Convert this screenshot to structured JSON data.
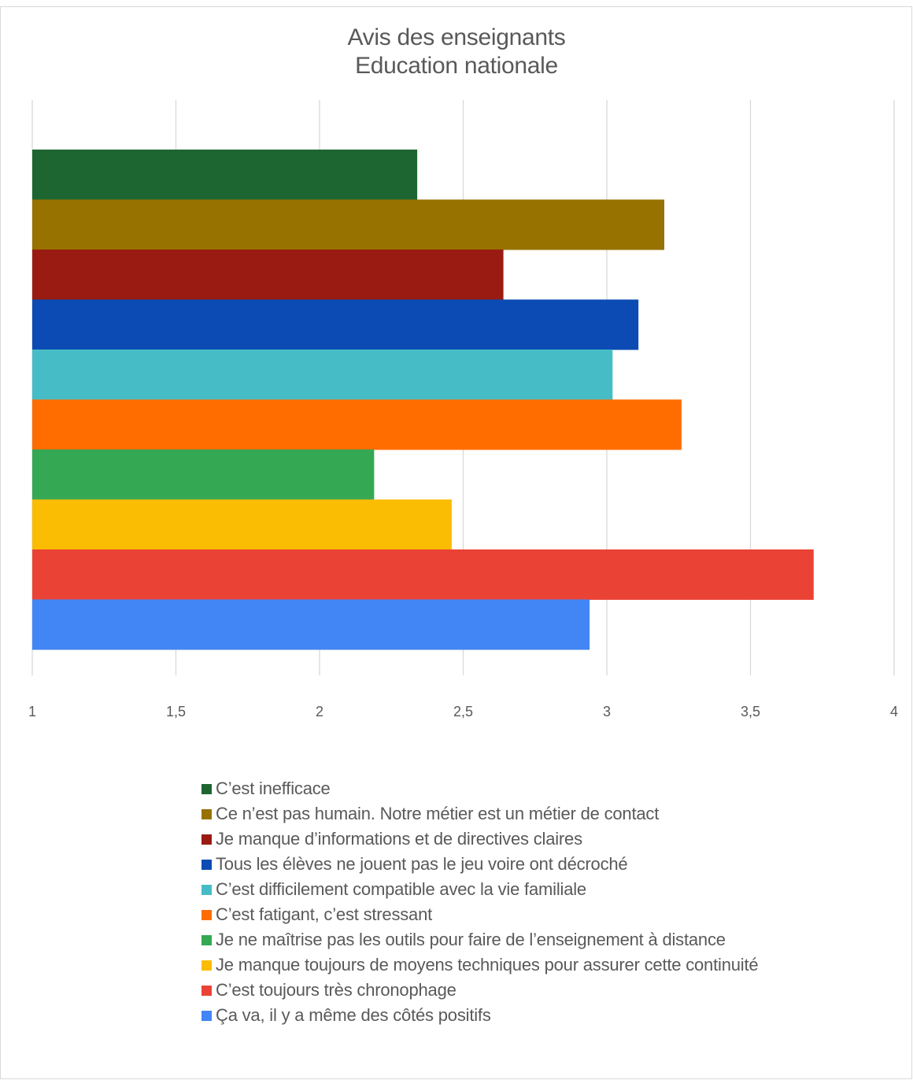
{
  "chart_data": {
    "type": "bar",
    "orientation": "horizontal",
    "title": "Avis des enseignants",
    "subtitle": "Education nationale",
    "xlabel": "",
    "ylabel": "",
    "xlim": [
      1,
      4
    ],
    "x_ticks": [
      "1",
      "1,5",
      "2",
      "2,5",
      "3",
      "3,5",
      "4"
    ],
    "x_tick_values": [
      1,
      1.5,
      2,
      2.5,
      3,
      3.5,
      4
    ],
    "grid": "vertical",
    "legend_position": "bottom",
    "series": [
      {
        "name": "C’est inefficace",
        "value": 2.34,
        "color": "#1e6631"
      },
      {
        "name": "Ce n’est pas humain. Notre métier est un métier de contact",
        "value": 3.2,
        "color": "#977200"
      },
      {
        "name": "Je manque d’informations et de directives claires",
        "value": 2.64,
        "color": "#9a1b12"
      },
      {
        "name": "Tous les élèves ne jouent pas le jeu voire ont décroché",
        "value": 3.11,
        "color": "#0b4bb3"
      },
      {
        "name": "C’est difficilement compatible avec la vie familiale",
        "value": 3.02,
        "color": "#46bdc6"
      },
      {
        "name": "C’est fatigant,  c’est stressant",
        "value": 3.26,
        "color": "#ff6d01"
      },
      {
        "name": "Je ne maîtrise pas les outils pour faire de l’enseignement à distance",
        "value": 2.19,
        "color": "#34a853"
      },
      {
        "name": "Je manque toujours de moyens techniques pour assurer cette continuité",
        "value": 2.46,
        "color": "#fbbc04"
      },
      {
        "name": "C’est toujours  très chronophage",
        "value": 3.72,
        "color": "#ea4335"
      },
      {
        "name": "Ça va, il y a même des côtés positifs",
        "value": 2.94,
        "color": "#4285f4"
      }
    ]
  }
}
